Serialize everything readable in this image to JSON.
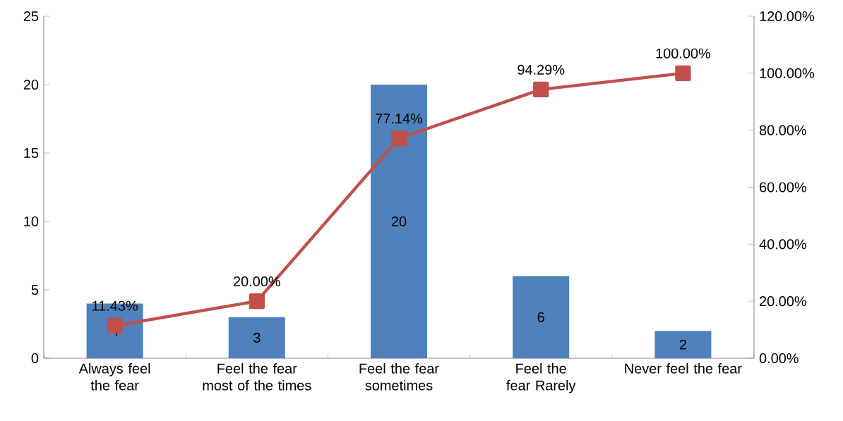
{
  "chart_data": {
    "type": "bar",
    "categories": [
      "Always feel the fear",
      "Feel the fear most of the times",
      "Feel the fear sometimes",
      "Feel the fear Rarely",
      "Never feel the fear"
    ],
    "series": [
      {
        "color": "#4f81bd",
        "values": [
          4,
          3,
          20,
          6,
          2
        ]
      },
      {
        "type": "line",
        "axis": "y2",
        "color": "#c0504d",
        "marker": "square",
        "values": [
          11.43,
          20,
          77.14,
          94.29,
          100
        ],
        "value_labels": [
          "11.43%",
          "20.00%",
          "77.14%",
          "94.29%",
          "100.00%"
        ]
      }
    ],
    "data_labels": true,
    "ylim": [
      0,
      25
    ],
    "yticks": [
      0,
      5,
      10,
      15,
      20,
      25
    ],
    "y2lim": [
      0,
      120
    ],
    "y2ticks": [
      {
        "value": 0,
        "label": "0.00%"
      },
      {
        "value": 20,
        "label": "20.00%"
      },
      {
        "value": 40,
        "label": "40.00%"
      },
      {
        "value": 60,
        "label": "60.00%"
      },
      {
        "value": 80,
        "label": "80.00%"
      },
      {
        "value": 100,
        "label": "100.00%"
      },
      {
        "value": 120,
        "label": "120.00%"
      }
    ],
    "grid": false,
    "legend": false
  }
}
